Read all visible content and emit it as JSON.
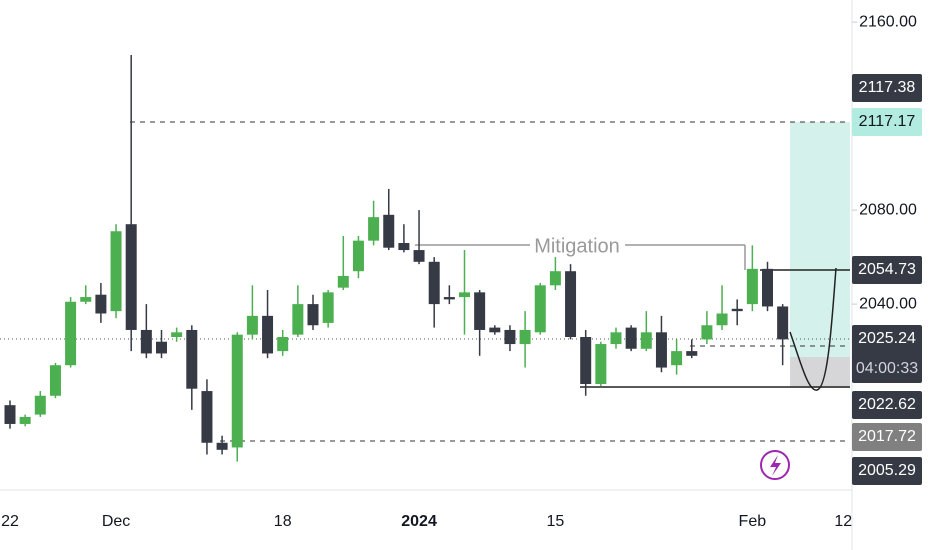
{
  "chart_data": {
    "type": "candlestick",
    "categories": [
      "22",
      null,
      null,
      null,
      null,
      null,
      null,
      "Dec",
      null,
      null,
      null,
      null,
      null,
      null,
      null,
      null,
      null,
      null,
      "18",
      null,
      null,
      null,
      null,
      null,
      null,
      null,
      null,
      "2024",
      null,
      null,
      null,
      null,
      null,
      null,
      null,
      null,
      "15",
      null,
      null,
      null,
      null,
      null,
      null,
      null,
      null,
      null,
      null,
      null,
      null,
      "Feb",
      null,
      null,
      null,
      null,
      null,
      "12",
      null
    ],
    "open": [
      1997,
      1989,
      1993,
      2001,
      2014,
      2041,
      2044,
      2037,
      2074,
      2029,
      2024,
      2026,
      2029,
      2003,
      1981,
      1979,
      2027,
      2035,
      2020,
      2027,
      2040,
      2032,
      2047,
      2054,
      2067,
      2078,
      2066,
      2063,
      2058,
      2043,
      2043,
      2045,
      2030,
      2029,
      2023,
      2028,
      2048,
      2054,
      2026,
      2006,
      2023,
      2030,
      2021,
      2028,
      2014,
      2020,
      2025,
      2031,
      2038,
      2040,
      2055,
      2039,
      null,
      null,
      null,
      null,
      null
    ],
    "high": [
      1999,
      1993,
      2003,
      2015,
      2043,
      2048,
      2049,
      2074,
      2146,
      2040,
      2029,
      2030,
      2031,
      2008,
      1984,
      2028,
      2048,
      2046,
      2029,
      2048,
      2044,
      2046,
      2069,
      2069,
      2084,
      2089,
      2074,
      2080,
      2060,
      2048,
      2063,
      2046,
      2031,
      2031,
      2037,
      2049,
      2060,
      2057,
      2029,
      2024,
      2030,
      2031,
      2037,
      2035,
      2025,
      2025,
      2037,
      2048,
      2042,
      2065,
      2058,
      2040,
      null,
      null,
      null,
      null,
      null
    ],
    "low": [
      1987,
      1988,
      1992,
      2000,
      2013,
      2040,
      2032,
      2034,
      2020,
      2017,
      2017,
      2024,
      1995,
      1976,
      1976,
      1973,
      2025,
      2017,
      2018,
      2026,
      2029,
      2030,
      2046,
      2051,
      2065,
      2063,
      2062,
      2057,
      2030,
      2040,
      2027,
      2018,
      2027,
      2020,
      2013,
      2027,
      2046,
      2025,
      2001,
      2005,
      2021,
      2020,
      2020,
      2011,
      2010,
      2017,
      2023,
      2029,
      2031,
      2037,
      2037,
      2014,
      null,
      null,
      null,
      null,
      null
    ],
    "close": [
      1989,
      1992,
      2001,
      2014,
      2041,
      2043,
      2036,
      2071,
      2029,
      2019,
      2019,
      2028,
      2004,
      1981,
      1978,
      2027,
      2035,
      2019,
      2026,
      2040,
      2031,
      2045,
      2052,
      2067,
      2077,
      2064,
      2063,
      2058,
      2040,
      2042,
      2045,
      2029,
      2028,
      2023,
      2029,
      2048,
      2054,
      2026,
      2006,
      2023,
      2028,
      2021,
      2028,
      2013,
      2020,
      2018,
      2031,
      2036,
      2037,
      2055,
      2039,
      2025,
      null,
      null,
      null,
      null,
      null
    ],
    "up_color": "#4caf50",
    "down_color": "#363a45",
    "ylim": [
      1960.9,
      2169.4
    ],
    "yticks": [
      {
        "value": 2160,
        "label": "2160.00"
      },
      {
        "value": 2080,
        "label": "2080.00"
      },
      {
        "value": 2040,
        "label": "2040.00"
      }
    ],
    "annotation": "Mitigation",
    "price_labels": [
      "2117.38",
      "2117.17",
      "2054.73",
      "2025.24",
      "2022.62",
      "2017.72",
      "2005.29"
    ],
    "countdown": "04:00:33"
  }
}
